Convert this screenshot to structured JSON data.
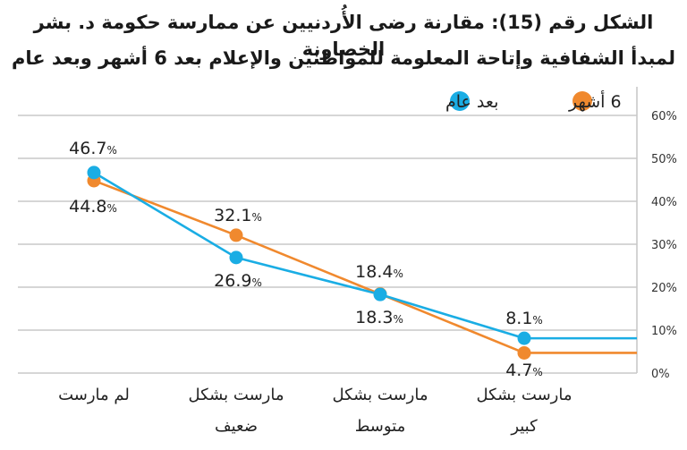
{
  "chart_data": {
    "type": "line",
    "title_line1": "الشكل رقم (15): مقارنة رضى الأُردنيين عن ممارسة حكومة د. بشر الخصاونة",
    "title_line2": "لمبدأ الشفافية وإتاحة المعلومة للمواطنين والإعلام بعد 6 أشهر وبعد عام",
    "categories": [
      "لم مارست",
      "مارست بشكل ضعيف",
      "مارست بشكل متوسط",
      "مارست بشكل كبير"
    ],
    "category_lines": [
      [
        "لم مارست"
      ],
      [
        "مارست بشكل",
        "ضعيف"
      ],
      [
        "مارست بشكل",
        "متوسط"
      ],
      [
        "مارست بشكل",
        "كبير"
      ]
    ],
    "series": [
      {
        "name": "6 أشهر",
        "color": "#f0892e",
        "values": [
          44.8,
          32.1,
          18.4,
          4.7
        ]
      },
      {
        "name": "بعد عام",
        "color": "#1aade4",
        "values": [
          46.7,
          26.9,
          18.3,
          8.1
        ]
      }
    ],
    "y_ticks": [
      "0%",
      "10%",
      "20%",
      "30%",
      "40%",
      "50%",
      "60%"
    ],
    "ylim": [
      0,
      60
    ],
    "y_axis_side": "right",
    "grid": true,
    "legend_position": "top"
  }
}
